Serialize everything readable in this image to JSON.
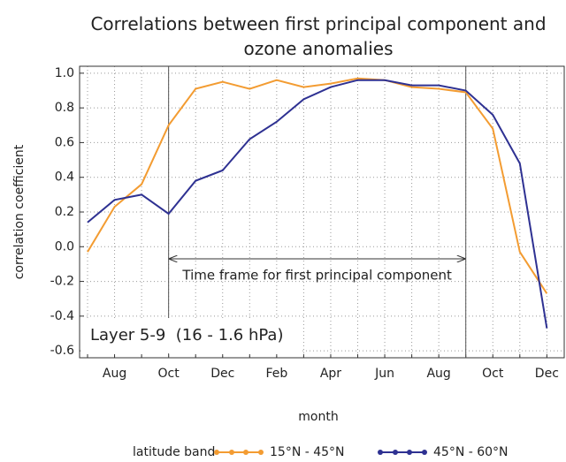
{
  "chart_data": {
    "type": "line",
    "title": "Correlations between first principal component and ozone anomalies",
    "x_label": "month",
    "y_label": "correlation coefficient",
    "categories": [
      null,
      "Aug",
      null,
      "Oct",
      null,
      "Dec",
      null,
      "Feb",
      null,
      "Apr",
      null,
      "Jun",
      null,
      "Aug",
      null,
      "Oct",
      null,
      "Dec"
    ],
    "series": [
      {
        "name": "15°N - 45°N",
        "color": "#f39c32",
        "values": [
          -0.03,
          0.23,
          0.36,
          0.7,
          0.91,
          0.95,
          0.91,
          0.96,
          0.92,
          0.94,
          0.97,
          0.96,
          0.92,
          0.91,
          0.89,
          0.68,
          -0.03,
          -0.27
        ]
      },
      {
        "name": "45°N - 60°N",
        "color": "#2e3192",
        "values": [
          0.14,
          0.27,
          0.3,
          0.19,
          0.38,
          0.44,
          0.62,
          0.72,
          0.85,
          0.92,
          0.96,
          0.96,
          0.93,
          0.93,
          0.9,
          0.76,
          0.48,
          -0.47
        ]
      }
    ],
    "ylim": [
      -0.64,
      1.04
    ],
    "yticks": [
      {
        "value": 1.0,
        "label": "1.0"
      },
      {
        "value": 0.8,
        "label": "0.8"
      },
      {
        "value": 0.6,
        "label": "0.6"
      },
      {
        "value": 0.4,
        "label": "0.4"
      },
      {
        "value": 0.2,
        "label": "0.2"
      },
      {
        "value": 0,
        "label": "0.0"
      },
      {
        "value": -0.2,
        "label": "-0.2"
      },
      {
        "value": -0.4,
        "label": "-0.4"
      },
      {
        "value": -0.6,
        "label": "-0.6"
      }
    ],
    "grid": true,
    "legend_title": "latitude band",
    "annotations": [
      "Time frame for first principal component",
      "Layer 5-9  (16 - 1.6 hPa)"
    ]
  }
}
